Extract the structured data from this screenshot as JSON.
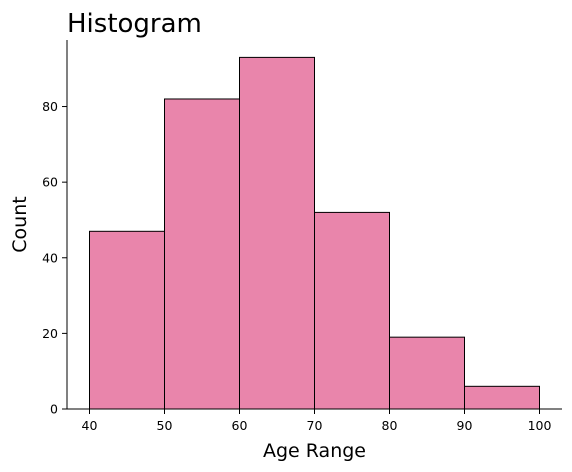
{
  "chart_data": {
    "type": "bar",
    "title": "Histogram",
    "xlabel": "Age Range",
    "ylabel": "Count",
    "bins": [
      {
        "start": 40,
        "end": 50,
        "count": 47
      },
      {
        "start": 50,
        "end": 60,
        "count": 82
      },
      {
        "start": 60,
        "end": 70,
        "count": 93
      },
      {
        "start": 70,
        "end": 80,
        "count": 52
      },
      {
        "start": 80,
        "end": 90,
        "count": 19
      },
      {
        "start": 90,
        "end": 100,
        "count": 6
      }
    ],
    "xlim": [
      37,
      103
    ],
    "ylim": [
      0,
      97.6
    ],
    "xticks": [
      40,
      50,
      60,
      70,
      80,
      90,
      100
    ],
    "yticks": [
      0,
      20,
      40,
      60,
      80
    ],
    "bar_color": "#e985ab",
    "edge_color": "#000000",
    "grid": false
  }
}
